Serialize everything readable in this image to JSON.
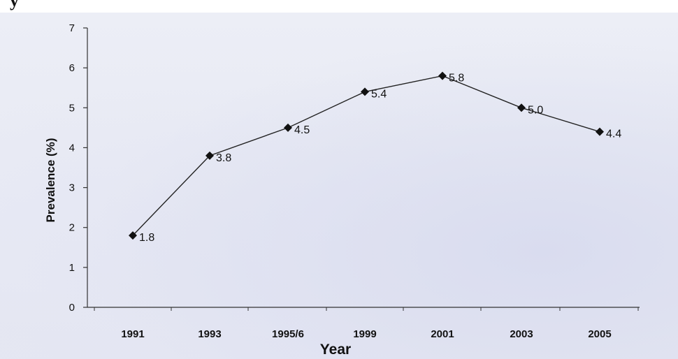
{
  "header": {
    "cut_text": "y"
  },
  "chart_data": {
    "type": "line",
    "title": "",
    "xlabel": "Year",
    "ylabel": "Prevalence (%)",
    "ylim": [
      0,
      7
    ],
    "yticks": [
      0,
      1,
      2,
      3,
      4,
      5,
      6,
      7
    ],
    "categories": [
      "1991",
      "1993",
      "1995/6",
      "1999",
      "2001",
      "2003",
      "2005"
    ],
    "series": [
      {
        "values": [
          1.8,
          3.8,
          4.5,
          5.4,
          5.8,
          5.0,
          4.4
        ],
        "labels": [
          "1.8",
          "3.8",
          "4.5",
          "5.4",
          "5.8",
          "5.0",
          "4.4"
        ]
      }
    ],
    "marker": "diamond",
    "line_color": "#222222",
    "grid": false,
    "legend": "none"
  }
}
